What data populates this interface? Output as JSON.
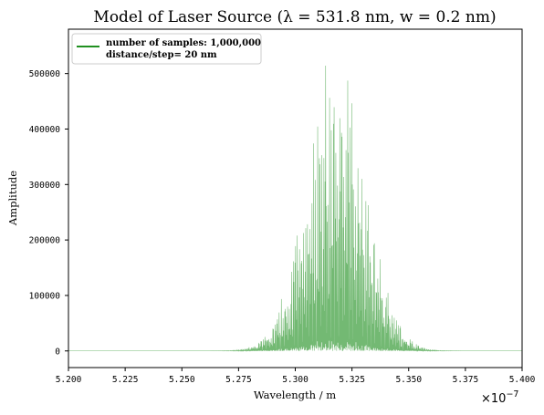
{
  "chart_data": {
    "type": "line",
    "title": "Model of Laser Source (λ = 531.8 nm, w = 0.2 nm)",
    "xlabel": "Wavelength / m",
    "ylabel": "Amplitude",
    "x_multiplier_label": "×10",
    "x_multiplier_exp": "−7",
    "xlim": [
      5.2,
      5.4
    ],
    "ylim": [
      -30000,
      580000
    ],
    "xticks": [
      5.2,
      5.225,
      5.25,
      5.275,
      5.3,
      5.325,
      5.35,
      5.375,
      5.4
    ],
    "xtick_labels": [
      "5.200",
      "5.225",
      "5.250",
      "5.275",
      "5.300",
      "5.325",
      "5.350",
      "5.375",
      "5.400"
    ],
    "yticks": [
      0,
      100000,
      200000,
      300000,
      400000,
      500000
    ],
    "ytick_labels": [
      "0",
      "100000",
      "200000",
      "300000",
      "400000",
      "500000"
    ],
    "grid": false,
    "legend_position": "top-left",
    "series": [
      {
        "name": "number of samples: 1,000,000",
        "name_line2": "distance/step= 20 nm",
        "color": "#008000",
        "center": 5.318,
        "width": 0.2,
        "peak": 555000,
        "x_unit_scale": "1e-7 m"
      }
    ]
  }
}
